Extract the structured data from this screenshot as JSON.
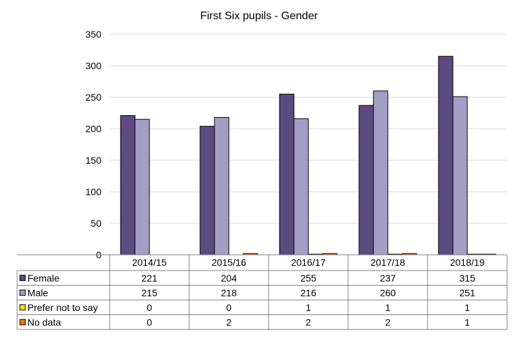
{
  "chart_data": {
    "type": "bar",
    "title": "First Six pupils - Gender",
    "categories": [
      "2014/15",
      "2015/16",
      "2016/17",
      "2017/18",
      "2018/19"
    ],
    "series": [
      {
        "name": "Female",
        "color": "#5c4a80",
        "values": [
          221,
          204,
          255,
          237,
          315
        ]
      },
      {
        "name": "Male",
        "color": "#a39ec4",
        "values": [
          215,
          218,
          216,
          260,
          251
        ]
      },
      {
        "name": "Prefer not to say",
        "color": "#ffe100",
        "values": [
          0,
          0,
          1,
          1,
          1
        ]
      },
      {
        "name": "No data",
        "color": "#f07800",
        "values": [
          0,
          2,
          2,
          2,
          1
        ]
      }
    ],
    "y_ticks": [
      "0",
      "50",
      "100",
      "150",
      "200",
      "250",
      "300",
      "350"
    ],
    "ylim": [
      0,
      350
    ],
    "grid": true,
    "legend": "data-table-below"
  }
}
